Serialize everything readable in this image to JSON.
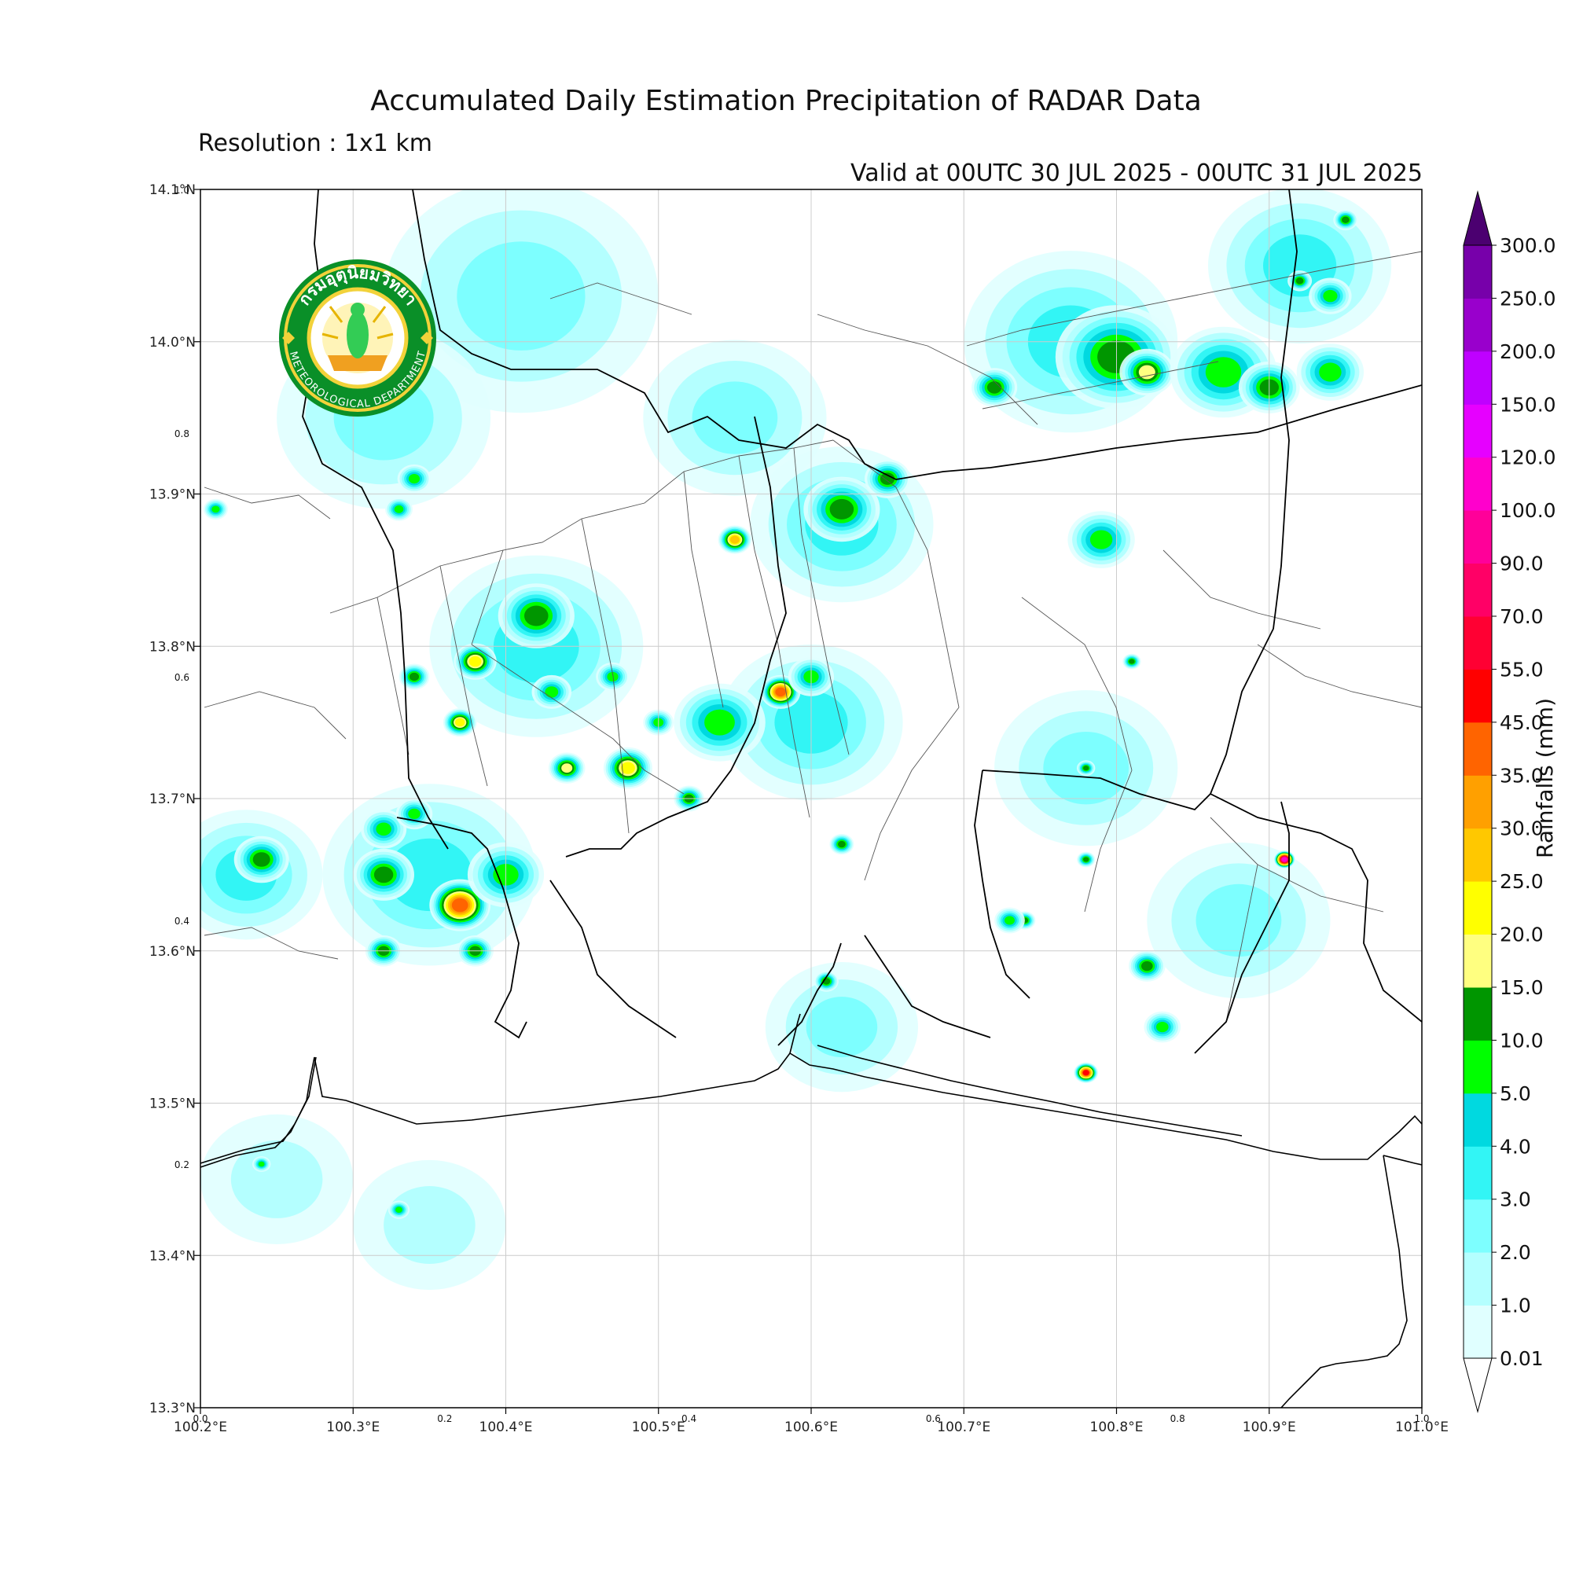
{
  "title": "Accumulated Daily Estimation Precipitation of RADAR Data",
  "resolution": "Resolution : 1x1 km",
  "valid": "Valid at 00UTC 30 JUL 2025 - 00UTC 31 JUL 2025",
  "logo": {
    "icon": "thai-meteorological-department-seal",
    "text_top": "กรมอุตุนิยมวิทยา",
    "text_bottom": "METEOROLOGICAL DEPARTMENT"
  },
  "map": {
    "lon_range": [
      100.2,
      101.0
    ],
    "lat_range": [
      13.3,
      14.1
    ],
    "lon_ticks": [
      {
        "value": 100.2,
        "label": "100.2°E"
      },
      {
        "value": 100.3,
        "label": "100.3°E"
      },
      {
        "value": 100.4,
        "label": "100.4°E"
      },
      {
        "value": 100.5,
        "label": "100.5°E"
      },
      {
        "value": 100.6,
        "label": "100.6°E"
      },
      {
        "value": 100.7,
        "label": "100.7°E"
      },
      {
        "value": 100.8,
        "label": "100.8°E"
      },
      {
        "value": 100.9,
        "label": "100.9°E"
      },
      {
        "value": 101.0,
        "label": "101.0°E"
      }
    ],
    "lat_ticks": [
      {
        "value": 14.1,
        "label": "14.1°N"
      },
      {
        "value": 14.0,
        "label": "14.0°N"
      },
      {
        "value": 13.9,
        "label": "13.9°N"
      },
      {
        "value": 13.8,
        "label": "13.8°N"
      },
      {
        "value": 13.7,
        "label": "13.7°N"
      },
      {
        "value": 13.6,
        "label": "13.6°N"
      },
      {
        "value": 13.5,
        "label": "13.5°N"
      },
      {
        "value": 13.4,
        "label": "13.4°N"
      },
      {
        "value": 13.3,
        "label": "13.3°N"
      }
    ],
    "minor_x_ticks": [
      {
        "value": 0.0,
        "label": "0.0"
      },
      {
        "value": 0.2,
        "label": "0.2"
      },
      {
        "value": 0.4,
        "label": "0.4"
      },
      {
        "value": 0.6,
        "label": "0.6"
      },
      {
        "value": 0.8,
        "label": "0.8"
      },
      {
        "value": 1.0,
        "label": "1.0"
      }
    ],
    "minor_y_ticks": [
      {
        "value": 0.2,
        "label": "0.2"
      },
      {
        "value": 0.4,
        "label": "0.4"
      },
      {
        "value": 0.6,
        "label": "0.6"
      },
      {
        "value": 0.8,
        "label": "0.8"
      },
      {
        "value": 1.0,
        "label": "1.0"
      }
    ]
  },
  "colorbar": {
    "label": "Rainfalls (mm)",
    "levels": [
      "0.01",
      "1.0",
      "2.0",
      "3.0",
      "4.0",
      "5.0",
      "10.0",
      "15.0",
      "20.0",
      "25.0",
      "30.0",
      "35.0",
      "45.0",
      "55.0",
      "70.0",
      "90.0",
      "100.0",
      "120.0",
      "150.0",
      "200.0",
      "250.0",
      "300.0"
    ],
    "colors": [
      "#e0ffff",
      "#b4ffff",
      "#7dffff",
      "#32f5f5",
      "#00d9e0",
      "#00ff00",
      "#009600",
      "#ffff80",
      "#ffff00",
      "#ffc800",
      "#ffa000",
      "#ff6400",
      "#ff0000",
      "#ff0033",
      "#ff0066",
      "#ff0099",
      "#ff00cc",
      "#e600ff",
      "#bf00ff",
      "#9900cc",
      "#7700aa"
    ],
    "over_color": "#4b0070"
  },
  "rain_cells": [
    {
      "lon": 100.92,
      "lat": 14.05,
      "mm": 3.0,
      "r": 0.06
    },
    {
      "lon": 100.77,
      "lat": 14.0,
      "mm": 3.5,
      "r": 0.07
    },
    {
      "lon": 100.41,
      "lat": 14.03,
      "mm": 2.5,
      "r": 0.09
    },
    {
      "lon": 100.32,
      "lat": 13.95,
      "mm": 2.5,
      "r": 0.07
    },
    {
      "lon": 100.55,
      "lat": 13.95,
      "mm": 2.5,
      "r": 0.06
    },
    {
      "lon": 100.62,
      "lat": 13.88,
      "mm": 3.5,
      "r": 0.06
    },
    {
      "lon": 100.42,
      "lat": 13.8,
      "mm": 3.5,
      "r": 0.07
    },
    {
      "lon": 100.6,
      "lat": 13.75,
      "mm": 3.5,
      "r": 0.06
    },
    {
      "lon": 100.35,
      "lat": 13.65,
      "mm": 3.5,
      "r": 0.07
    },
    {
      "lon": 100.23,
      "lat": 13.65,
      "mm": 3.0,
      "r": 0.05
    },
    {
      "lon": 100.88,
      "lat": 13.62,
      "mm": 2.5,
      "r": 0.06
    },
    {
      "lon": 100.78,
      "lat": 13.72,
      "mm": 2.5,
      "r": 0.06
    },
    {
      "lon": 100.25,
      "lat": 13.45,
      "mm": 1.8,
      "r": 0.05
    },
    {
      "lon": 100.35,
      "lat": 13.42,
      "mm": 1.5,
      "r": 0.05
    },
    {
      "lon": 100.62,
      "lat": 13.55,
      "mm": 2.0,
      "r": 0.05
    },
    {
      "lon": 100.79,
      "lat": 13.87,
      "mm": 6.0,
      "r": 0.022
    },
    {
      "lon": 100.8,
      "lat": 13.99,
      "mm": 12.0,
      "r": 0.04
    },
    {
      "lon": 100.82,
      "lat": 13.98,
      "mm": 16.0,
      "r": 0.018
    },
    {
      "lon": 100.87,
      "lat": 13.98,
      "mm": 8.0,
      "r": 0.035
    },
    {
      "lon": 100.9,
      "lat": 13.97,
      "mm": 14.0,
      "r": 0.02
    },
    {
      "lon": 100.72,
      "lat": 13.97,
      "mm": 10.0,
      "r": 0.015
    },
    {
      "lon": 100.94,
      "lat": 13.98,
      "mm": 7.0,
      "r": 0.022
    },
    {
      "lon": 100.62,
      "lat": 13.89,
      "mm": 12.0,
      "r": 0.025
    },
    {
      "lon": 100.65,
      "lat": 13.91,
      "mm": 10.0,
      "r": 0.015
    },
    {
      "lon": 100.55,
      "lat": 13.87,
      "mm": 25.0,
      "r": 0.011
    },
    {
      "lon": 100.42,
      "lat": 13.82,
      "mm": 13.0,
      "r": 0.025
    },
    {
      "lon": 100.38,
      "lat": 13.79,
      "mm": 20.0,
      "r": 0.014
    },
    {
      "lon": 100.34,
      "lat": 13.78,
      "mm": 11.0,
      "r": 0.01
    },
    {
      "lon": 100.58,
      "lat": 13.77,
      "mm": 40.0,
      "r": 0.013
    },
    {
      "lon": 100.54,
      "lat": 13.75,
      "mm": 9.0,
      "r": 0.03
    },
    {
      "lon": 100.48,
      "lat": 13.72,
      "mm": 20.0,
      "r": 0.016
    },
    {
      "lon": 100.44,
      "lat": 13.72,
      "mm": 16.0,
      "r": 0.012
    },
    {
      "lon": 100.37,
      "lat": 13.75,
      "mm": 20.0,
      "r": 0.011
    },
    {
      "lon": 100.43,
      "lat": 13.77,
      "mm": 7.0,
      "r": 0.013
    },
    {
      "lon": 100.47,
      "lat": 13.78,
      "mm": 7.0,
      "r": 0.011
    },
    {
      "lon": 100.5,
      "lat": 13.75,
      "mm": 6.0,
      "r": 0.01
    },
    {
      "lon": 100.52,
      "lat": 13.7,
      "mm": 11.0,
      "r": 0.01
    },
    {
      "lon": 100.37,
      "lat": 13.63,
      "mm": 40.0,
      "r": 0.02
    },
    {
      "lon": 100.38,
      "lat": 13.6,
      "mm": 13.0,
      "r": 0.012
    },
    {
      "lon": 100.4,
      "lat": 13.65,
      "mm": 7.0,
      "r": 0.025
    },
    {
      "lon": 100.32,
      "lat": 13.65,
      "mm": 13.0,
      "r": 0.02
    },
    {
      "lon": 100.32,
      "lat": 13.6,
      "mm": 14.0,
      "r": 0.012
    },
    {
      "lon": 100.24,
      "lat": 13.66,
      "mm": 14.0,
      "r": 0.018
    },
    {
      "lon": 100.32,
      "lat": 13.68,
      "mm": 6.0,
      "r": 0.015
    },
    {
      "lon": 100.34,
      "lat": 13.69,
      "mm": 6.0,
      "r": 0.012
    },
    {
      "lon": 100.6,
      "lat": 13.78,
      "mm": 6.0,
      "r": 0.015
    },
    {
      "lon": 100.62,
      "lat": 13.67,
      "mm": 12.0,
      "r": 0.008
    },
    {
      "lon": 100.61,
      "lat": 13.58,
      "mm": 12.0,
      "r": 0.008
    },
    {
      "lon": 100.82,
      "lat": 13.59,
      "mm": 13.0,
      "r": 0.012
    },
    {
      "lon": 100.83,
      "lat": 13.55,
      "mm": 6.0,
      "r": 0.012
    },
    {
      "lon": 100.91,
      "lat": 13.66,
      "mm": 100.0,
      "r": 0.007
    },
    {
      "lon": 100.78,
      "lat": 13.52,
      "mm": 45.0,
      "r": 0.008
    },
    {
      "lon": 100.74,
      "lat": 13.62,
      "mm": 12.0,
      "r": 0.007
    },
    {
      "lon": 100.73,
      "lat": 13.62,
      "mm": 6.0,
      "r": 0.01
    },
    {
      "lon": 100.78,
      "lat": 13.72,
      "mm": 12.0,
      "r": 0.006
    },
    {
      "lon": 100.81,
      "lat": 13.79,
      "mm": 12.0,
      "r": 0.006
    },
    {
      "lon": 100.78,
      "lat": 13.66,
      "mm": 12.0,
      "r": 0.006
    },
    {
      "lon": 100.34,
      "lat": 13.91,
      "mm": 6.0,
      "r": 0.011
    },
    {
      "lon": 100.33,
      "lat": 13.89,
      "mm": 6.0,
      "r": 0.009
    },
    {
      "lon": 100.21,
      "lat": 13.89,
      "mm": 5.5,
      "r": 0.008
    },
    {
      "lon": 100.95,
      "lat": 14.08,
      "mm": 12.0,
      "r": 0.008
    },
    {
      "lon": 100.92,
      "lat": 14.04,
      "mm": 12.0,
      "r": 0.008
    },
    {
      "lon": 100.94,
      "lat": 14.03,
      "mm": 6.0,
      "r": 0.014
    },
    {
      "lon": 100.33,
      "lat": 13.43,
      "mm": 6.0,
      "r": 0.007
    },
    {
      "lon": 100.24,
      "lat": 13.46,
      "mm": 6.0,
      "r": 0.006
    }
  ]
}
